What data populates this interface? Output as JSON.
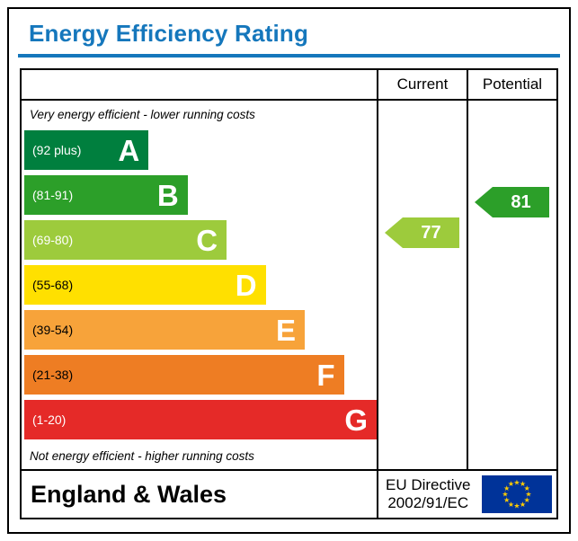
{
  "title": "Energy Efficiency Rating",
  "columns": {
    "current": "Current",
    "potential": "Potential"
  },
  "captions": {
    "top": "Very energy efficient - lower running costs",
    "bottom": "Not energy efficient - higher running costs"
  },
  "bands": [
    {
      "letter": "A",
      "range_label": "(92 plus)",
      "min": 92,
      "max": 100,
      "color": "#007f3e",
      "text_color": "#ffffff",
      "width_pct": 35
    },
    {
      "letter": "B",
      "range_label": "(81-91)",
      "min": 81,
      "max": 91,
      "color": "#2c9f29",
      "text_color": "#ffffff",
      "width_pct": 46
    },
    {
      "letter": "C",
      "range_label": "(69-80)",
      "min": 69,
      "max": 80,
      "color": "#9dcb3c",
      "text_color": "#ffffff",
      "width_pct": 57
    },
    {
      "letter": "D",
      "range_label": "(55-68)",
      "min": 55,
      "max": 68,
      "color": "#ffe000",
      "text_color": "#000000",
      "width_pct": 68
    },
    {
      "letter": "E",
      "range_label": "(39-54)",
      "min": 39,
      "max": 54,
      "color": "#f7a33a",
      "text_color": "#000000",
      "width_pct": 79
    },
    {
      "letter": "F",
      "range_label": "(21-38)",
      "min": 21,
      "max": 38,
      "color": "#ee7d23",
      "text_color": "#000000",
      "width_pct": 90
    },
    {
      "letter": "G",
      "range_label": "(1-20)",
      "min": 1,
      "max": 20,
      "color": "#e52a28",
      "text_color": "#ffffff",
      "width_pct": 100
    }
  ],
  "ratings": {
    "current": {
      "value": 77,
      "color": "#9dcb3c",
      "band": "C"
    },
    "potential": {
      "value": 81,
      "color": "#2c9f29",
      "band": "B"
    }
  },
  "footer": {
    "region": "England & Wales",
    "directive_line1": "EU Directive",
    "directive_line2": "2002/91/EC"
  },
  "colors": {
    "title_blue": "#1577bc",
    "flag_blue": "#003399",
    "flag_star": "#ffcc00"
  },
  "chart_data": {
    "type": "bar",
    "title": "Energy Efficiency Rating",
    "categories": [
      "A (92 plus)",
      "B (81-91)",
      "C (69-80)",
      "D (55-68)",
      "E (39-54)",
      "F (21-38)",
      "G (1-20)"
    ],
    "values": [
      35,
      46,
      57,
      68,
      79,
      90,
      100
    ],
    "series": [
      {
        "name": "Current",
        "value": 77,
        "band": "C"
      },
      {
        "name": "Potential",
        "value": 81,
        "band": "B"
      }
    ],
    "xlabel": "",
    "ylabel": "",
    "legend": [
      "Current",
      "Potential"
    ],
    "notes": "EPC rating scale; bar lengths are ordinal from A (shortest) to G (longest), values[] give relative bar width percent of chart column"
  }
}
